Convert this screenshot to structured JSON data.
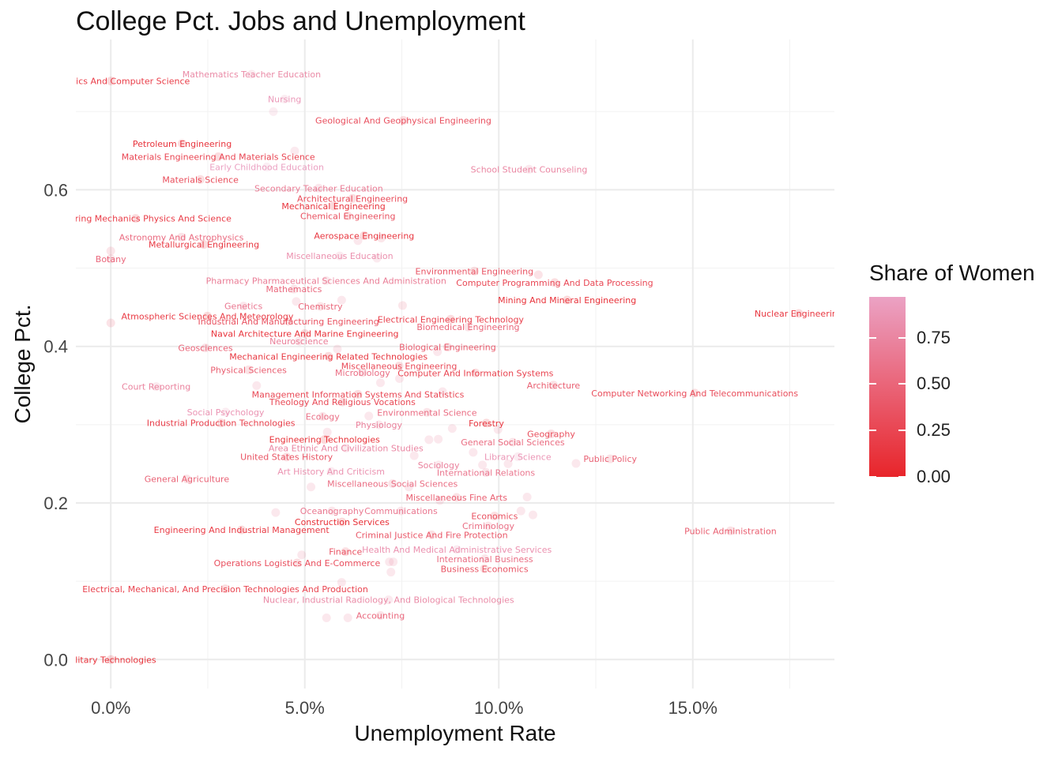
{
  "chart_data": {
    "type": "scatter",
    "title": "College Pct. Jobs and Unemployment",
    "xlabel": "Unemployment Rate",
    "ylabel": "College Pct.",
    "xlim": [
      -0.009,
      0.1865
    ],
    "ylim": [
      -0.037,
      0.792
    ],
    "x_ticks": [
      0,
      0.05,
      0.1,
      0.15
    ],
    "x_tick_labels": [
      "0.0%",
      "5.0%",
      "10.0%",
      "15.0%"
    ],
    "y_ticks": [
      0,
      0.2,
      0.4,
      0.6
    ],
    "y_tick_labels": [
      "0.0",
      "0.2",
      "0.4",
      "0.6"
    ],
    "grid": true,
    "color_scale": {
      "name": "Share of Women",
      "low": "#e8252a",
      "high": "#eba2c4",
      "ticks": [
        0,
        0.25,
        0.5,
        0.75
      ],
      "tick_labels": [
        "0.00",
        "0.25",
        "0.50",
        "0.75"
      ],
      "max": 0.97
    },
    "legend_position": "right",
    "points": [
      {
        "label": "Mathematics Teacher Education",
        "x": 0.0363,
        "y": 0.7476,
        "w": 0.79
      },
      {
        "label": "Mathematics And Computer Science",
        "x": 0.0,
        "y": 0.7389,
        "w": 0.18
      },
      {
        "label": "Nursing",
        "x": 0.0448,
        "y": 0.7158,
        "w": 0.9
      },
      {
        "label": "Geological And Geophysical Engineering",
        "x": 0.0754,
        "y": 0.6887,
        "w": 0.32
      },
      {
        "label": "Petroleum Engineering",
        "x": 0.0184,
        "y": 0.6591,
        "w": 0.12
      },
      {
        "label": "Materials Engineering And Materials Science",
        "x": 0.0277,
        "y": 0.6422,
        "w": 0.25
      },
      {
        "label": "Early Childhood Education",
        "x": 0.0402,
        "y": 0.6292,
        "w": 0.96
      },
      {
        "label": "School Student Counseling",
        "x": 0.1078,
        "y": 0.6263,
        "w": 0.76
      },
      {
        "label": "Materials Science",
        "x": 0.0231,
        "y": 0.6132,
        "w": 0.31
      },
      {
        "label": "Secondary Teacher Education",
        "x": 0.0536,
        "y": 0.6021,
        "w": 0.67
      },
      {
        "label": "Architectural Engineering",
        "x": 0.0623,
        "y": 0.589,
        "w": 0.29
      },
      {
        "label": "Mechanical Engineering",
        "x": 0.0574,
        "y": 0.5792,
        "w": 0.12
      },
      {
        "label": "Chemical Engineering",
        "x": 0.0611,
        "y": 0.5667,
        "w": 0.34
      },
      {
        "label": "Engineering Mechanics Physics And Science",
        "x": 0.0064,
        "y": 0.5634,
        "w": 0.18
      },
      {
        "label": "Aerospace Engineering",
        "x": 0.0653,
        "y": 0.5415,
        "w": 0.14
      },
      {
        "label": "Astronomy And Astrophysics",
        "x": 0.0182,
        "y": 0.5395,
        "w": 0.54
      },
      {
        "label": "Metallurgical Engineering",
        "x": 0.024,
        "y": 0.5302,
        "w": 0.15
      },
      {
        "label": "Miscellaneous Education",
        "x": 0.059,
        "y": 0.5156,
        "w": 0.83
      },
      {
        "label": "Botany",
        "x": 0.0,
        "y": 0.5117,
        "w": 0.52
      },
      {
        "label": "Environmental Engineering",
        "x": 0.0937,
        "y": 0.4962,
        "w": 0.38
      },
      {
        "label": "Pharmacy Pharmaceutical Sciences And Administration",
        "x": 0.0555,
        "y": 0.484,
        "w": 0.68
      },
      {
        "label": "Computer Programming And Data Processing",
        "x": 0.1144,
        "y": 0.4815,
        "w": 0.27
      },
      {
        "label": "Mathematics",
        "x": 0.0472,
        "y": 0.4732,
        "w": 0.52
      },
      {
        "label": "Mining And Mineral Engineering",
        "x": 0.1176,
        "y": 0.4592,
        "w": 0.1
      },
      {
        "label": "Genetics",
        "x": 0.0342,
        "y": 0.4515,
        "w": 0.64
      },
      {
        "label": "Chemistry",
        "x": 0.054,
        "y": 0.451,
        "w": 0.51
      },
      {
        "label": "Nuclear Engineering",
        "x": 0.1773,
        "y": 0.4421,
        "w": 0.14
      },
      {
        "label": "Atmospheric Sciences And Meteorology",
        "x": 0.0249,
        "y": 0.4387,
        "w": 0.17
      },
      {
        "label": "Electrical Engineering Technology",
        "x": 0.0876,
        "y": 0.4347,
        "w": 0.22
      },
      {
        "label": "Industrial And Manufacturing Engineering",
        "x": 0.0458,
        "y": 0.4321,
        "w": 0.34
      },
      {
        "label": "Biomedical Engineering",
        "x": 0.0921,
        "y": 0.4248,
        "w": 0.5
      },
      {
        "label": "Naval Architecture And Marine Engineering",
        "x": 0.05,
        "y": 0.4163,
        "w": 0.11
      },
      {
        "label": "Neuroscience",
        "x": 0.0485,
        "y": 0.4066,
        "w": 0.69
      },
      {
        "label": "Biological Engineering",
        "x": 0.0868,
        "y": 0.399,
        "w": 0.42
      },
      {
        "label": "Geosciences",
        "x": 0.0244,
        "y": 0.398,
        "w": 0.49
      },
      {
        "label": "Mechanical Engineering Related Technologies",
        "x": 0.0561,
        "y": 0.3873,
        "w": 0.14
      },
      {
        "label": "Miscellaneous Engineering",
        "x": 0.0743,
        "y": 0.375,
        "w": 0.29
      },
      {
        "label": "Physical Sciences",
        "x": 0.0355,
        "y": 0.37,
        "w": 0.45
      },
      {
        "label": "Microbiology",
        "x": 0.0649,
        "y": 0.3665,
        "w": 0.56
      },
      {
        "label": "Computer And Information Systems",
        "x": 0.094,
        "y": 0.366,
        "w": 0.24
      },
      {
        "label": "Architecture",
        "x": 0.1141,
        "y": 0.3505,
        "w": 0.45
      },
      {
        "label": "Court Reporting",
        "x": 0.0117,
        "y": 0.3486,
        "w": 0.73
      },
      {
        "label": "Computer Networking And Telecommunications",
        "x": 0.1505,
        "y": 0.3403,
        "w": 0.31
      },
      {
        "label": "Management Information Systems And Statistics",
        "x": 0.0637,
        "y": 0.3388,
        "w": 0.28
      },
      {
        "label": "Theology And Religious Vocations",
        "x": 0.0597,
        "y": 0.329,
        "w": 0.28
      },
      {
        "label": "Social Psychology",
        "x": 0.0296,
        "y": 0.3161,
        "w": 0.87
      },
      {
        "label": "Environmental Science",
        "x": 0.0815,
        "y": 0.3157,
        "w": 0.56
      },
      {
        "label": "Ecology",
        "x": 0.0546,
        "y": 0.3105,
        "w": 0.58
      },
      {
        "label": "Industrial Production Technologies",
        "x": 0.0284,
        "y": 0.3022,
        "w": 0.22
      },
      {
        "label": "Forestry",
        "x": 0.0968,
        "y": 0.302,
        "w": 0.13
      },
      {
        "label": "Physiology",
        "x": 0.0691,
        "y": 0.2998,
        "w": 0.71
      },
      {
        "label": "Geography",
        "x": 0.1135,
        "y": 0.2883,
        "w": 0.33
      },
      {
        "label": "Engineering Technologies",
        "x": 0.0551,
        "y": 0.281,
        "w": 0.09
      },
      {
        "label": "General Social Sciences",
        "x": 0.1036,
        "y": 0.2775,
        "w": 0.55
      },
      {
        "label": "Area Ethnic And Civilization Studies",
        "x": 0.0606,
        "y": 0.2701,
        "w": 0.76
      },
      {
        "label": "Library Science",
        "x": 0.1049,
        "y": 0.2591,
        "w": 0.88
      },
      {
        "label": "Public Policy",
        "x": 0.1287,
        "y": 0.2563,
        "w": 0.47
      },
      {
        "label": "United States History",
        "x": 0.0453,
        "y": 0.2588,
        "w": 0.37
      },
      {
        "label": "Sociology",
        "x": 0.0845,
        "y": 0.2485,
        "w": 0.73
      },
      {
        "label": "Art History And Criticism",
        "x": 0.0568,
        "y": 0.2403,
        "w": 0.85
      },
      {
        "label": "International Relations",
        "x": 0.0967,
        "y": 0.2389,
        "w": 0.63
      },
      {
        "label": "General Agriculture",
        "x": 0.0196,
        "y": 0.2306,
        "w": 0.48
      },
      {
        "label": "Miscellaneous Social Sciences",
        "x": 0.0726,
        "y": 0.2247,
        "w": 0.56
      },
      {
        "label": "Miscellaneous Fine Arts",
        "x": 0.0891,
        "y": 0.2071,
        "w": 0.45
      },
      {
        "label": "Oceanography",
        "x": 0.057,
        "y": 0.1898,
        "w": 0.65
      },
      {
        "label": "Communications",
        "x": 0.0748,
        "y": 0.1898,
        "w": 0.64
      },
      {
        "label": "Economics",
        "x": 0.0989,
        "y": 0.1833,
        "w": 0.34
      },
      {
        "label": "Construction Services",
        "x": 0.0596,
        "y": 0.1757,
        "w": 0.09
      },
      {
        "label": "Criminology",
        "x": 0.0973,
        "y": 0.1706,
        "w": 0.57
      },
      {
        "label": "Engineering And Industrial Management",
        "x": 0.0337,
        "y": 0.1656,
        "w": 0.17
      },
      {
        "label": "Public Administration",
        "x": 0.1597,
        "y": 0.1644,
        "w": 0.44
      },
      {
        "label": "Criminal Justice And Fire Protection",
        "x": 0.0827,
        "y": 0.1593,
        "w": 0.39
      },
      {
        "label": "Finance",
        "x": 0.0605,
        "y": 0.1378,
        "w": 0.36
      },
      {
        "label": "Health And Medical Administrative Services",
        "x": 0.0892,
        "y": 0.1405,
        "w": 0.84
      },
      {
        "label": "International Business",
        "x": 0.0964,
        "y": 0.1286,
        "w": 0.57
      },
      {
        "label": "Operations Logistics And E-Commerce",
        "x": 0.048,
        "y": 0.1234,
        "w": 0.32
      },
      {
        "label": "Business Economics",
        "x": 0.0963,
        "y": 0.116,
        "w": 0.38
      },
      {
        "label": "Electrical, Mechanical, And Precision Technologies And Production",
        "x": 0.0295,
        "y": 0.0903,
        "w": 0.23
      },
      {
        "label": "Nuclear, Industrial Radiology, And Biological Technologies",
        "x": 0.0716,
        "y": 0.0763,
        "w": 0.79
      },
      {
        "label": "Accounting",
        "x": 0.0695,
        "y": 0.0563,
        "w": 0.52
      },
      {
        "label": "Military Technologies",
        "x": 0.0,
        "y": 0.0,
        "w": 0.11
      }
    ],
    "extra_points": [
      {
        "x": 0.0419,
        "y": 0.6998,
        "w": 0.9
      },
      {
        "x": 0.0474,
        "y": 0.6495,
        "w": 0.8
      },
      {
        "x": 0.0,
        "y": 0.4299,
        "w": 0.5
      },
      {
        "x": 0.0,
        "y": 0.5218,
        "w": 0.6
      },
      {
        "x": 0.0697,
        "y": 0.5384,
        "w": 0.6
      },
      {
        "x": 0.0637,
        "y": 0.5351,
        "w": 0.7
      },
      {
        "x": 0.0686,
        "y": 0.5126,
        "w": 0.8
      },
      {
        "x": 0.1102,
        "y": 0.4915,
        "w": 0.5
      },
      {
        "x": 0.0478,
        "y": 0.4573,
        "w": 0.7
      },
      {
        "x": 0.0595,
        "y": 0.4591,
        "w": 0.7
      },
      {
        "x": 0.0752,
        "y": 0.4522,
        "w": 0.6
      },
      {
        "x": 0.0584,
        "y": 0.3965,
        "w": 0.7
      },
      {
        "x": 0.0842,
        "y": 0.3931,
        "w": 0.7
      },
      {
        "x": 0.0376,
        "y": 0.3499,
        "w": 0.7
      },
      {
        "x": 0.0695,
        "y": 0.3535,
        "w": 0.7
      },
      {
        "x": 0.0744,
        "y": 0.3588,
        "w": 0.7
      },
      {
        "x": 0.0855,
        "y": 0.3422,
        "w": 0.7
      },
      {
        "x": 0.0665,
        "y": 0.3111,
        "w": 0.7
      },
      {
        "x": 0.088,
        "y": 0.2952,
        "w": 0.7
      },
      {
        "x": 0.0998,
        "y": 0.2938,
        "w": 0.7
      },
      {
        "x": 0.0558,
        "y": 0.2905,
        "w": 0.7
      },
      {
        "x": 0.082,
        "y": 0.2808,
        "w": 0.7
      },
      {
        "x": 0.0844,
        "y": 0.2815,
        "w": 0.7
      },
      {
        "x": 0.0934,
        "y": 0.2647,
        "w": 0.7
      },
      {
        "x": 0.0782,
        "y": 0.2604,
        "w": 0.7
      },
      {
        "x": 0.0958,
        "y": 0.2485,
        "w": 0.7
      },
      {
        "x": 0.1024,
        "y": 0.25,
        "w": 0.7
      },
      {
        "x": 0.1199,
        "y": 0.2505,
        "w": 0.7
      },
      {
        "x": 0.0516,
        "y": 0.2204,
        "w": 0.7
      },
      {
        "x": 0.0768,
        "y": 0.2204,
        "w": 0.7
      },
      {
        "x": 0.1073,
        "y": 0.2076,
        "w": 0.7
      },
      {
        "x": 0.0848,
        "y": 0.2032,
        "w": 0.7
      },
      {
        "x": 0.0425,
        "y": 0.1878,
        "w": 0.7
      },
      {
        "x": 0.1057,
        "y": 0.1898,
        "w": 0.7
      },
      {
        "x": 0.1088,
        "y": 0.1847,
        "w": 0.7
      },
      {
        "x": 0.0492,
        "y": 0.1337,
        "w": 0.7
      },
      {
        "x": 0.0718,
        "y": 0.1248,
        "w": 0.7
      },
      {
        "x": 0.0728,
        "y": 0.1248,
        "w": 0.7
      },
      {
        "x": 0.0722,
        "y": 0.1117,
        "w": 0.7
      },
      {
        "x": 0.0595,
        "y": 0.0985,
        "w": 0.7
      },
      {
        "x": 0.0556,
        "y": 0.0533,
        "w": 0.7
      },
      {
        "x": 0.0611,
        "y": 0.0533,
        "w": 0.7
      }
    ]
  }
}
